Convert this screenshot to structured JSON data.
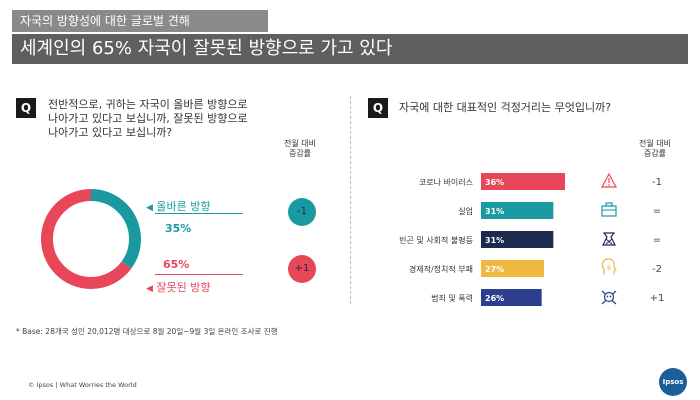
{
  "header": {
    "subtitle": "자국의 방향성에 대한 글로벌 견해",
    "title": "세계인의 65% 자국이 잘못된 방향으로 가고 있다"
  },
  "left": {
    "q_mark": "Q",
    "question_lines": [
      "전반적으로, 귀하는 자국이 올바른 방향으로",
      "나아가고 있다고 보십니까,  잘못된 방향으로",
      "나아가고 있다고 보십니까?"
    ],
    "change_header_lines": [
      "전월 대비",
      "증감률"
    ],
    "colors": {
      "right": "#1a9aa0",
      "wrong": "#e8475a"
    }
  },
  "right": {
    "q_mark": "Q",
    "question": "자국에 대한 대표적인 걱정거리는 무엇입니까?",
    "change_header_lines": [
      "전월 대비",
      "증감률"
    ],
    "icons": [
      "warning-triangle-icon",
      "briefcase-icon",
      "money-bag-icon",
      "head-dollar-icon",
      "skull-crossbones-icon"
    ]
  },
  "chart_data": [
    {
      "type": "pie",
      "categories": [
        "올바른 방향",
        "잘못된 방향"
      ],
      "values": [
        35,
        65
      ],
      "value_labels": [
        "35%",
        "65%"
      ],
      "changes": [
        "-1",
        "+1"
      ],
      "colors": [
        "#1a9aa0",
        "#e8475a"
      ]
    },
    {
      "type": "bar",
      "categories": [
        "코로나 바이러스",
        "실업",
        "빈곤 및 사회적 불평등",
        "경제적/정치적 부패",
        "범죄 및 폭력"
      ],
      "values": [
        36,
        31,
        31,
        27,
        26
      ],
      "value_labels": [
        "36%",
        "31%",
        "31%",
        "27%",
        "26%"
      ],
      "changes": [
        "-1",
        "=",
        "=",
        "-2",
        "+1"
      ],
      "colors": [
        "#e8475a",
        "#1a9aa0",
        "#1c2a4f",
        "#f0b840",
        "#2d3e8f"
      ],
      "xlim": [
        0,
        36
      ]
    }
  ],
  "footnote": "* Base: 28개국 성인 20,012명 대상으로 8월 20일~9월 3일 온라인 조사로 진행",
  "footer": "© Ipsos | What Worries the World",
  "logo": "Ipsos"
}
